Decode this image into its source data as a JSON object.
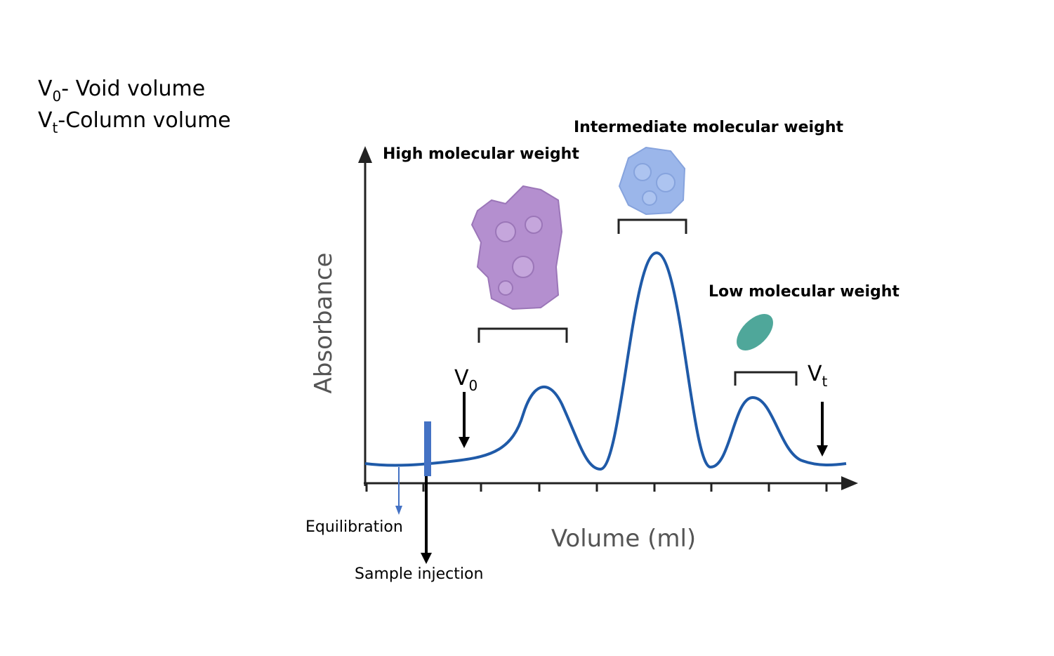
{
  "legend": [
    {
      "symbol": "V",
      "subscript": "0",
      "text": "- Void volume"
    },
    {
      "symbol": "V",
      "subscript": "t",
      "text": "-Column volume"
    }
  ],
  "axes": {
    "y_label": "Absorbance",
    "x_label": "Volume (ml)"
  },
  "peaks": [
    {
      "label": "High molecular weight"
    },
    {
      "label": "Intermediate molecular weight"
    },
    {
      "label": "Low molecular weight"
    }
  ],
  "markers": [
    {
      "symbol": "V",
      "subscript": "0"
    },
    {
      "symbol": "V",
      "subscript": "t"
    }
  ],
  "events": [
    {
      "label": "Equilibration"
    },
    {
      "label": "Sample injection"
    }
  ]
}
